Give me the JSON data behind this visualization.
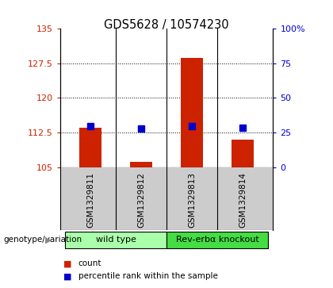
{
  "title": "GDS5628 / 10574230",
  "samples": [
    "GSM1329811",
    "GSM1329812",
    "GSM1329813",
    "GSM1329814"
  ],
  "bar_bottoms": [
    105,
    105,
    105,
    105
  ],
  "bar_tops": [
    113.5,
    106.2,
    128.7,
    111.0
  ],
  "blue_values": [
    113.9,
    113.3,
    113.9,
    113.5
  ],
  "ylim_left": [
    105,
    135
  ],
  "ylim_right": [
    0,
    100
  ],
  "yticks_left": [
    105,
    112.5,
    120,
    127.5,
    135
  ],
  "yticks_right": [
    0,
    25,
    50,
    75,
    100
  ],
  "ytick_labels_left": [
    "105",
    "112.5",
    "120",
    "127.5",
    "135"
  ],
  "ytick_labels_right": [
    "0",
    "25",
    "50",
    "75",
    "100%"
  ],
  "bar_color": "#cc2200",
  "blue_color": "#0000cc",
  "groups": [
    {
      "label": "wild type",
      "samples": [
        0,
        1
      ],
      "color": "#aaffaa"
    },
    {
      "label": "Rev-erbα knockout",
      "samples": [
        2,
        3
      ],
      "color": "#44dd44"
    }
  ],
  "genotype_label": "genotype/variation",
  "legend_items": [
    {
      "color": "#cc2200",
      "label": "count"
    },
    {
      "color": "#0000cc",
      "label": "percentile rank within the sample"
    }
  ],
  "bar_width": 0.45,
  "blue_marker_size": 6,
  "background_color": "#ffffff",
  "plot_bg_color": "#ffffff",
  "sample_label_area_color": "#cccccc",
  "title_fontsize": 10.5,
  "tick_fontsize": 8,
  "sample_fontsize": 7.5,
  "legend_fontsize": 7.5,
  "group_fontsize": 8
}
